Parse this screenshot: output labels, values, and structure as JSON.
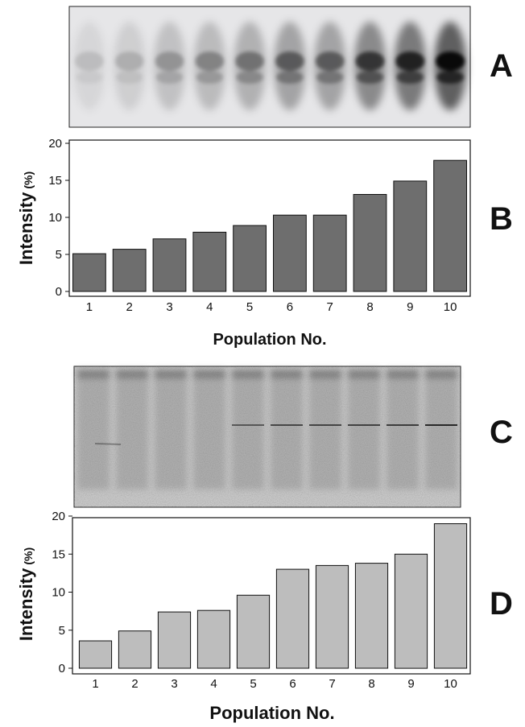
{
  "panels": {
    "a": "A",
    "b": "B",
    "c": "C",
    "d": "D"
  },
  "colors": {
    "bar_b": "#6e6e6e",
    "bar_d": "#bdbdbd",
    "axis": "#111111"
  },
  "chart_data": [
    {
      "id": "B",
      "type": "bar",
      "categories": [
        "1",
        "2",
        "3",
        "4",
        "5",
        "6",
        "7",
        "8",
        "9",
        "10"
      ],
      "values": [
        5.1,
        5.7,
        7.1,
        8.0,
        8.9,
        10.3,
        10.3,
        13.1,
        14.9,
        17.7
      ],
      "xlabel": "Population No.",
      "ylabel": "Intensity",
      "ylabel_unit": "(%)",
      "ylim": [
        0,
        20
      ],
      "yticks": [
        0,
        5,
        10,
        15,
        20
      ]
    },
    {
      "id": "D",
      "type": "bar",
      "categories": [
        "1",
        "2",
        "3",
        "4",
        "5",
        "6",
        "7",
        "8",
        "9",
        "10"
      ],
      "values": [
        3.6,
        4.9,
        7.4,
        7.6,
        9.6,
        13.0,
        13.5,
        13.8,
        15.0,
        19.0
      ],
      "xlabel": "Population No.",
      "ylabel": "Intensity",
      "ylabel_unit": "(%)",
      "ylim": [
        0,
        20
      ],
      "yticks": [
        0,
        5,
        10,
        15,
        20
      ]
    }
  ]
}
